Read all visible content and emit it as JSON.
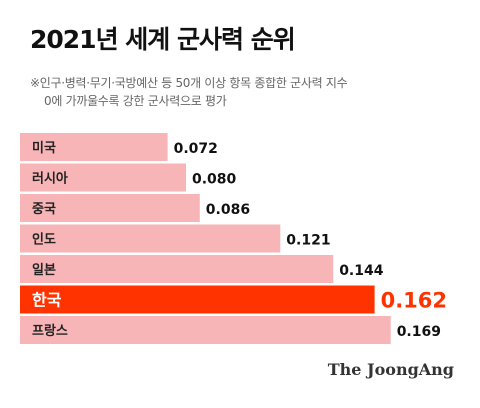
{
  "header": {
    "title": "2021년 세계 군사력 순위",
    "subtitle_line1": "※인구·병력·무기·국방예산 등 50개 이상 항목 종합한 군사력 지수",
    "subtitle_line2": "0에 가까울수록 강한 군사력으로 평가"
  },
  "chart_data": {
    "type": "bar",
    "orientation": "horizontal",
    "categories": [
      "미국",
      "러시아",
      "중국",
      "인도",
      "일본",
      "한국",
      "프랑스"
    ],
    "values": [
      0.072,
      0.08,
      0.086,
      0.121,
      0.144,
      0.162,
      0.169
    ],
    "value_labels": [
      "0.072",
      "0.080",
      "0.086",
      "0.121",
      "0.144",
      "0.162",
      "0.169"
    ],
    "highlight_index": 5,
    "colors": {
      "bar": "#f7b5b7",
      "highlight": "#ff3300",
      "label": "#111111"
    },
    "grid": false,
    "legend": "none"
  },
  "footer": {
    "brand": "The JoongAng"
  }
}
